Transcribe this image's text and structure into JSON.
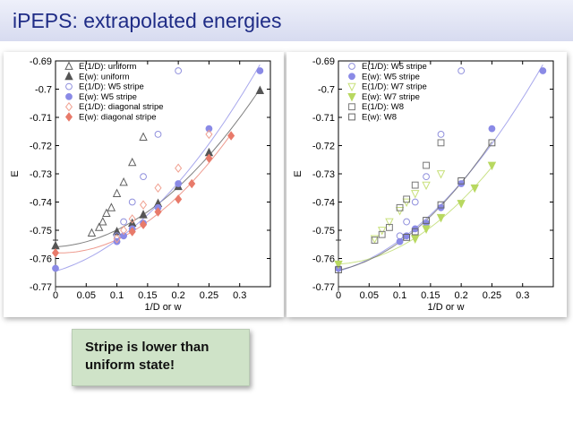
{
  "slide": {
    "title": "iPEPS: extrapolated energies",
    "callout": "Stripe is lower than uniform state!"
  },
  "chart_data": [
    {
      "type": "scatter",
      "xlabel": "1/D or w",
      "ylabel": "E",
      "xlim": [
        0,
        0.35
      ],
      "ylim": [
        -0.77,
        -0.69
      ],
      "xticks": [
        0,
        0.05,
        0.1,
        0.15,
        0.2,
        0.25,
        0.3
      ],
      "yticks": [
        -0.69,
        -0.7,
        -0.71,
        -0.72,
        -0.73,
        -0.74,
        -0.75,
        -0.76,
        -0.77
      ],
      "legend_position": "top-left",
      "series": [
        {
          "name": "E(1/D): uniform",
          "marker": "triangle",
          "filled": false,
          "color": "#606060",
          "x": [
            0.059,
            0.071,
            0.077,
            0.083,
            0.091,
            0.1,
            0.111,
            0.125,
            0.143
          ],
          "y": [
            -0.751,
            -0.749,
            -0.747,
            -0.744,
            -0.742,
            -0.737,
            -0.733,
            -0.726,
            -0.717
          ]
        },
        {
          "name": "E(w): uniform",
          "marker": "triangle",
          "filled": true,
          "color": "#555555",
          "x": [
            0.0,
            0.1,
            0.125,
            0.143,
            0.167,
            0.2,
            0.25,
            0.333
          ],
          "y": [
            -0.7555,
            -0.7505,
            -0.7475,
            -0.7445,
            -0.7405,
            -0.7345,
            -0.7225,
            -0.7005
          ]
        },
        {
          "name": "E(1/D): W5 stripe",
          "marker": "circle",
          "filled": false,
          "color": "#9090dd",
          "x": [
            0.1,
            0.111,
            0.125,
            0.143,
            0.167,
            0.2
          ],
          "y": [
            -0.752,
            -0.747,
            -0.74,
            -0.731,
            -0.716,
            -0.6935
          ]
        },
        {
          "name": "E(w): W5 stripe",
          "marker": "circle",
          "filled": true,
          "color": "#8a8ae6",
          "x": [
            0.0,
            0.1,
            0.111,
            0.125,
            0.143,
            0.167,
            0.2,
            0.25,
            0.333
          ],
          "y": [
            -0.7635,
            -0.754,
            -0.752,
            -0.7495,
            -0.7475,
            -0.742,
            -0.7335,
            -0.714,
            -0.6935
          ]
        },
        {
          "name": "E(1/D): diagonal stripe",
          "marker": "diamond",
          "filled": false,
          "color": "#f0a090",
          "x": [
            0.1,
            0.111,
            0.125,
            0.143,
            0.167,
            0.2,
            0.25
          ],
          "y": [
            -0.753,
            -0.75,
            -0.746,
            -0.741,
            -0.735,
            -0.728,
            -0.716
          ]
        },
        {
          "name": "E(w): diagonal stripe",
          "marker": "diamond",
          "filled": true,
          "color": "#e87a6a",
          "x": [
            0.0,
            0.125,
            0.143,
            0.167,
            0.2,
            0.222,
            0.25,
            0.286
          ],
          "y": [
            -0.758,
            -0.7505,
            -0.748,
            -0.7435,
            -0.739,
            -0.7335,
            -0.7245,
            -0.7165
          ]
        }
      ]
    },
    {
      "type": "scatter",
      "xlabel": "1/D or w",
      "ylabel": "E",
      "xlim": [
        0,
        0.35
      ],
      "ylim": [
        -0.77,
        -0.69
      ],
      "xticks": [
        0,
        0.05,
        0.1,
        0.15,
        0.2,
        0.25,
        0.3
      ],
      "yticks": [
        -0.69,
        -0.7,
        -0.71,
        -0.72,
        -0.73,
        -0.74,
        -0.75,
        -0.76,
        -0.77
      ],
      "legend_position": "top-left",
      "series": [
        {
          "name": "E(1/D): W5 stripe",
          "marker": "circle",
          "filled": false,
          "color": "#9090dd",
          "x": [
            0.1,
            0.111,
            0.125,
            0.143,
            0.167,
            0.2
          ],
          "y": [
            -0.752,
            -0.747,
            -0.74,
            -0.731,
            -0.716,
            -0.6935
          ]
        },
        {
          "name": "E(w): W5 stripe",
          "marker": "circle",
          "filled": true,
          "color": "#8a8ae6",
          "x": [
            0.0,
            0.1,
            0.111,
            0.125,
            0.143,
            0.167,
            0.2,
            0.25,
            0.333
          ],
          "y": [
            -0.7635,
            -0.754,
            -0.752,
            -0.7495,
            -0.7475,
            -0.742,
            -0.7335,
            -0.714,
            -0.6935
          ]
        },
        {
          "name": "E(1/D): W7 stripe",
          "marker": "triangle-down",
          "filled": false,
          "color": "#c8e07a",
          "x": [
            0.059,
            0.071,
            0.083,
            0.1,
            0.111,
            0.125,
            0.143,
            0.167
          ],
          "y": [
            -0.753,
            -0.75,
            -0.747,
            -0.743,
            -0.74,
            -0.737,
            -0.734,
            -0.73
          ]
        },
        {
          "name": "E(w): W7 stripe",
          "marker": "triangle-down",
          "filled": true,
          "color": "#b8d860",
          "x": [
            0.0,
            0.125,
            0.143,
            0.167,
            0.2,
            0.222,
            0.25
          ],
          "y": [
            -0.762,
            -0.753,
            -0.7495,
            -0.7455,
            -0.7405,
            -0.735,
            -0.727
          ]
        },
        {
          "name": "E(1/D): W8",
          "marker": "square",
          "filled": false,
          "color": "#777777",
          "x": [
            0.059,
            0.071,
            0.083,
            0.1,
            0.111,
            0.125,
            0.143,
            0.167
          ],
          "y": [
            -0.7535,
            -0.7515,
            -0.749,
            -0.742,
            -0.739,
            -0.734,
            -0.727,
            -0.719
          ]
        },
        {
          "name": "E(w): W8",
          "marker": "square",
          "filled": false,
          "color": "#666666",
          "x": [
            0.0,
            0.111,
            0.125,
            0.143,
            0.167,
            0.2,
            0.25
          ],
          "y": [
            -0.764,
            -0.7525,
            -0.7505,
            -0.7465,
            -0.741,
            -0.7325,
            -0.719
          ]
        }
      ]
    }
  ]
}
